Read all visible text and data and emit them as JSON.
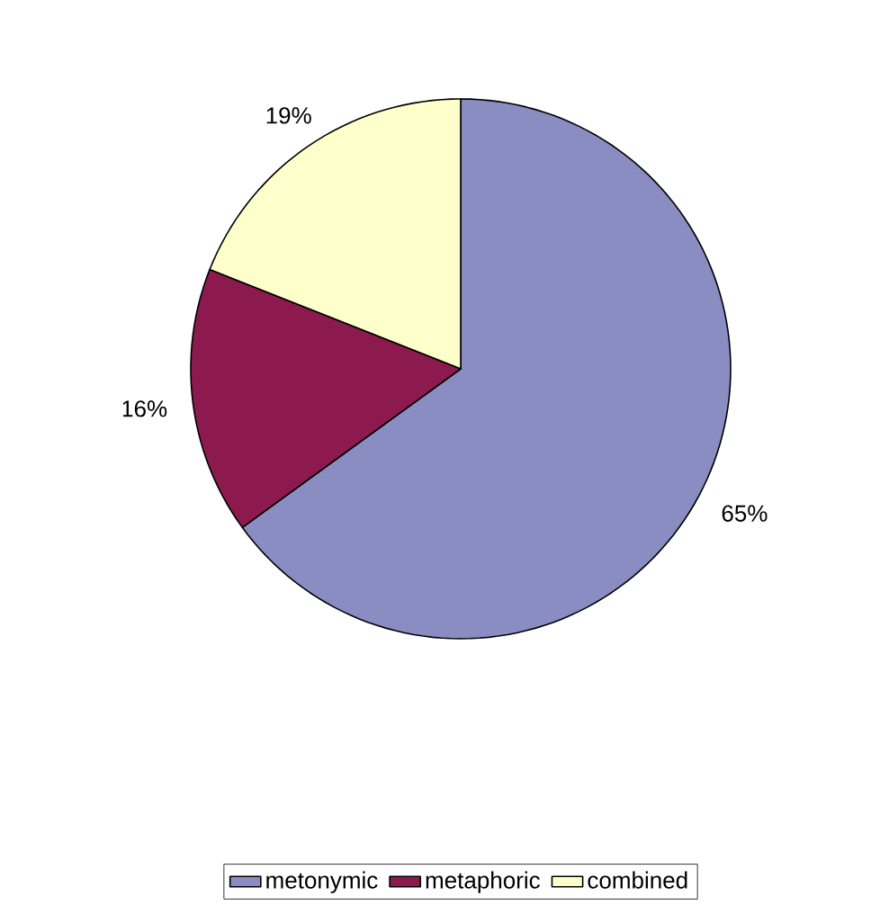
{
  "chart_data": {
    "type": "pie",
    "categories": [
      "metonymic",
      "metaphoric",
      "combined"
    ],
    "values": [
      65,
      16,
      19
    ],
    "colors": [
      "#8a8dc2",
      "#8c1a4e",
      "#ffffcc"
    ],
    "value_labels": [
      "65%",
      "16%",
      "19%"
    ],
    "legend": "bottom"
  }
}
